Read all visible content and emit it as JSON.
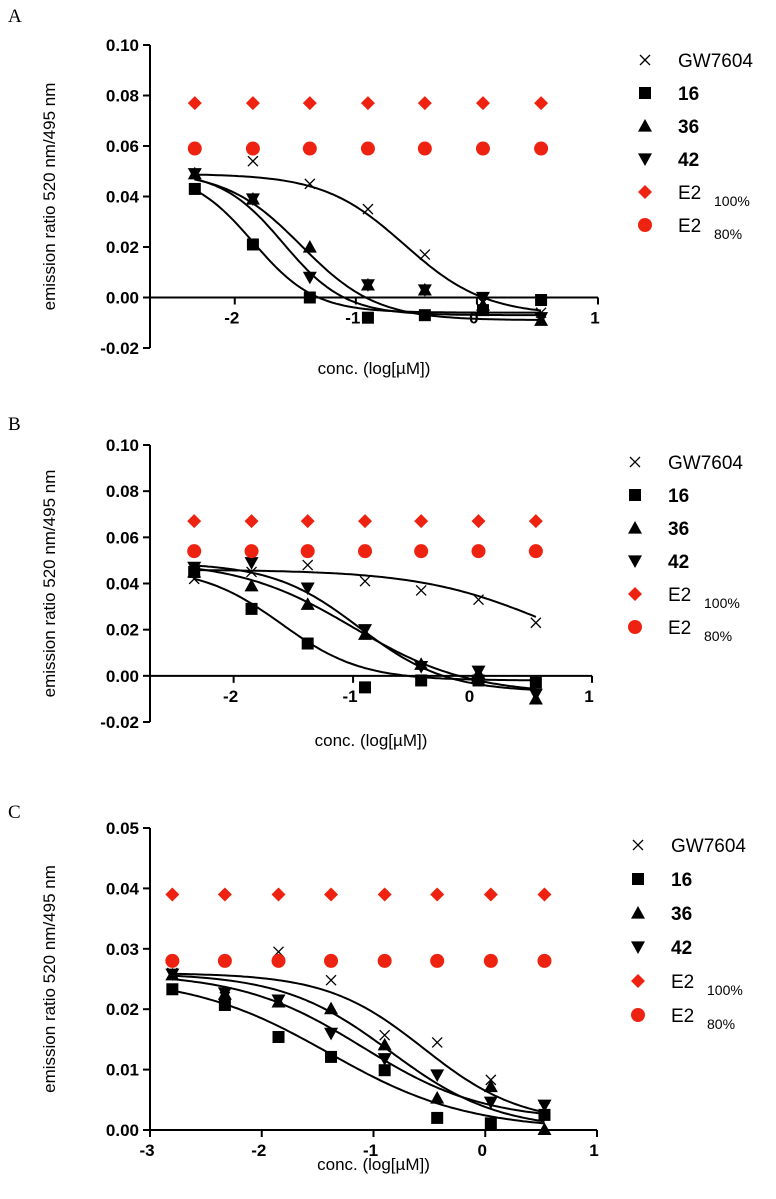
{
  "chart_data": [
    {
      "type": "scatter",
      "panel_label": "A",
      "xlabel": "conc. (log[µM])",
      "ylabel": "emission ratio 520 nm/495 nm",
      "xlim": [
        -2.7,
        1
      ],
      "ylim": [
        -0.02,
        0.1
      ],
      "xticks": [
        -2,
        -1,
        0,
        1
      ],
      "xtick_labels": [
        "-2",
        "-1",
        "0",
        "1"
      ],
      "yticks": [
        -0.02,
        0.0,
        0.02,
        0.04,
        0.06,
        0.08,
        0.1
      ],
      "ytick_labels": [
        "-0.02",
        "0.00",
        "0.02",
        "0.04",
        "0.06",
        "0.08",
        "0.10"
      ],
      "x": [
        -2.33,
        -1.85,
        -1.38,
        -0.9,
        -0.43,
        0.05,
        0.53
      ],
      "series": [
        {
          "name": "GW7604",
          "marker": "x",
          "color": "#000000",
          "values": [
            0.049,
            0.054,
            0.045,
            0.035,
            0.017,
            -0.002,
            -0.006
          ],
          "fit": {
            "top": 0.049,
            "bottom": -0.007,
            "logec50": -0.6,
            "hill": 1.3
          }
        },
        {
          "name": "16",
          "marker": "square",
          "color": "#000000",
          "values": [
            0.043,
            0.021,
            0.0,
            -0.008,
            -0.007,
            -0.005,
            -0.001
          ],
          "fit": {
            "top": 0.05,
            "bottom": -0.006,
            "logec50": -1.85,
            "hill": 1.7
          }
        },
        {
          "name": "36",
          "marker": "triangle-up",
          "color": "#000000",
          "values": [
            0.049,
            0.039,
            0.02,
            0.005,
            0.003,
            -0.003,
            -0.009
          ],
          "fit": {
            "top": 0.05,
            "bottom": -0.009,
            "logec50": -1.45,
            "hill": 1.4
          }
        },
        {
          "name": "42",
          "marker": "triangle-down",
          "color": "#000000",
          "values": [
            0.049,
            0.039,
            0.008,
            0.005,
            0.003,
            0.0,
            -0.008
          ],
          "fit": {
            "top": 0.05,
            "bottom": -0.007,
            "logec50": -1.6,
            "hill": 1.7
          }
        },
        {
          "name": "E2 100%",
          "marker": "diamond",
          "color": "#ee2211",
          "values": [
            0.077,
            0.077,
            0.077,
            0.077,
            0.077,
            0.077,
            0.077
          ]
        },
        {
          "name": "E2 80%",
          "marker": "circle",
          "color": "#ee2211",
          "values": [
            0.059,
            0.059,
            0.059,
            0.059,
            0.059,
            0.059,
            0.059
          ]
        }
      ],
      "legend": [
        {
          "main": "GW7604",
          "sub": "",
          "bold": false
        },
        {
          "main": "16",
          "sub": "",
          "bold": true
        },
        {
          "main": "36",
          "sub": "",
          "bold": true
        },
        {
          "main": "42",
          "sub": "",
          "bold": true
        },
        {
          "main": "E2",
          "sub": "100%",
          "bold": false
        },
        {
          "main": "E2",
          "sub": "80%",
          "bold": false
        }
      ]
    },
    {
      "type": "scatter",
      "panel_label": "B",
      "xlabel": "conc. (log[µM])",
      "ylabel": "emission ratio 520 nm/495 nm",
      "xlim": [
        -2.7,
        1
      ],
      "ylim": [
        -0.02,
        0.1
      ],
      "xticks": [
        -2,
        -1,
        0,
        1
      ],
      "xtick_labels": [
        "-2",
        "-1",
        "0",
        "1"
      ],
      "yticks": [
        -0.02,
        0.0,
        0.02,
        0.04,
        0.06,
        0.08,
        0.1
      ],
      "ytick_labels": [
        "-0.02",
        "0.00",
        "0.02",
        "0.04",
        "0.06",
        "0.08",
        "0.10"
      ],
      "x": [
        -2.33,
        -1.85,
        -1.38,
        -0.9,
        -0.43,
        0.05,
        0.53
      ],
      "series": [
        {
          "name": "GW7604",
          "marker": "x",
          "color": "#000000",
          "values": [
            0.042,
            0.045,
            0.048,
            0.041,
            0.037,
            0.033,
            0.023
          ],
          "fit": {
            "top": 0.046,
            "bottom": 0.0,
            "logec50": 0.65,
            "hill": 0.8
          }
        },
        {
          "name": "16",
          "marker": "square",
          "color": "#000000",
          "values": [
            0.045,
            0.029,
            0.014,
            -0.005,
            -0.002,
            -0.002,
            -0.003
          ],
          "fit": {
            "top": 0.047,
            "bottom": -0.002,
            "logec50": -1.6,
            "hill": 1.3
          }
        },
        {
          "name": "36",
          "marker": "triangle-up",
          "color": "#000000",
          "values": [
            0.045,
            0.039,
            0.031,
            0.018,
            0.005,
            0.001,
            -0.01
          ],
          "fit": {
            "top": 0.05,
            "bottom": -0.008,
            "logec50": -1.0,
            "hill": 0.9
          }
        },
        {
          "name": "42",
          "marker": "triangle-down",
          "color": "#000000",
          "values": [
            0.047,
            0.049,
            0.038,
            0.02,
            0.004,
            0.002,
            -0.008
          ],
          "fit": {
            "top": 0.049,
            "bottom": -0.007,
            "logec50": -0.95,
            "hill": 1.2
          }
        },
        {
          "name": "E2 100%",
          "marker": "diamond",
          "color": "#ee2211",
          "values": [
            0.067,
            0.067,
            0.067,
            0.067,
            0.067,
            0.067,
            0.067
          ]
        },
        {
          "name": "E2 80%",
          "marker": "circle",
          "color": "#ee2211",
          "values": [
            0.054,
            0.054,
            0.054,
            0.054,
            0.054,
            0.054,
            0.054
          ]
        }
      ],
      "legend": [
        {
          "main": "GW7604",
          "sub": "",
          "bold": false
        },
        {
          "main": "16",
          "sub": "",
          "bold": true
        },
        {
          "main": "36",
          "sub": "",
          "bold": true
        },
        {
          "main": "42",
          "sub": "",
          "bold": true
        },
        {
          "main": "E2",
          "sub": "100%",
          "bold": false
        },
        {
          "main": "E2",
          "sub": "80%",
          "bold": false
        }
      ]
    },
    {
      "type": "scatter",
      "panel_label": "C",
      "xlabel": "conc. (log[µM])",
      "ylabel": "emission ratio 520 nm/495 nm",
      "xlim": [
        -3,
        1
      ],
      "ylim": [
        0.0,
        0.05
      ],
      "xticks": [
        -3,
        -2,
        -1,
        0,
        1
      ],
      "xtick_labels": [
        "-3",
        "-2",
        "-1",
        "0",
        "1"
      ],
      "yticks": [
        0.0,
        0.01,
        0.02,
        0.03,
        0.04,
        0.05
      ],
      "ytick_labels": [
        "0.00",
        "0.01",
        "0.02",
        "0.03",
        "0.04",
        "0.05"
      ],
      "x": [
        -2.8,
        -2.33,
        -1.85,
        -1.38,
        -0.9,
        -0.43,
        0.05,
        0.53
      ],
      "series": [
        {
          "name": "GW7604",
          "marker": "x",
          "color": "#000000",
          "values": [
            0.026,
            0.022,
            0.0295,
            0.0248,
            0.0157,
            0.0145,
            0.0083,
            0.0037
          ],
          "fit": {
            "top": 0.026,
            "bottom": 0.001,
            "logec50": -0.55,
            "hill": 1.0
          }
        },
        {
          "name": "16",
          "marker": "square",
          "color": "#000000",
          "values": [
            0.0233,
            0.0207,
            0.0154,
            0.0121,
            0.0099,
            0.002,
            0.0011,
            0.0025
          ],
          "fit": {
            "top": 0.0255,
            "bottom": 0.0,
            "logec50": -1.4,
            "hill": 0.7
          }
        },
        {
          "name": "36",
          "marker": "triangle-up",
          "color": "#000000",
          "values": [
            0.0257,
            0.0225,
            0.0212,
            0.0201,
            0.0141,
            0.0053,
            0.0072,
            0.0001
          ],
          "fit": {
            "top": 0.026,
            "bottom": 0.0,
            "logec50": -0.85,
            "hill": 0.9
          }
        },
        {
          "name": "42",
          "marker": "triangle-down",
          "color": "#000000",
          "values": [
            0.0258,
            0.0227,
            0.0215,
            0.016,
            0.0118,
            0.0091,
            0.0046,
            0.0041
          ],
          "fit": {
            "top": 0.026,
            "bottom": 0.0015,
            "logec50": -1.1,
            "hill": 0.8
          }
        },
        {
          "name": "E2 100%",
          "marker": "diamond",
          "color": "#ee2211",
          "values": [
            0.039,
            0.039,
            0.039,
            0.039,
            0.039,
            0.039,
            0.039,
            0.039
          ]
        },
        {
          "name": "E2 80%",
          "marker": "circle",
          "color": "#ee2211",
          "values": [
            0.028,
            0.028,
            0.028,
            0.028,
            0.028,
            0.028,
            0.028,
            0.028
          ]
        }
      ],
      "legend": [
        {
          "main": "GW7604",
          "sub": "",
          "bold": false
        },
        {
          "main": "16",
          "sub": "",
          "bold": true
        },
        {
          "main": "36",
          "sub": "",
          "bold": true
        },
        {
          "main": "42",
          "sub": "",
          "bold": true
        },
        {
          "main": "E2",
          "sub": "100%",
          "bold": false
        },
        {
          "main": "E2",
          "sub": "80%",
          "bold": false
        }
      ]
    }
  ]
}
